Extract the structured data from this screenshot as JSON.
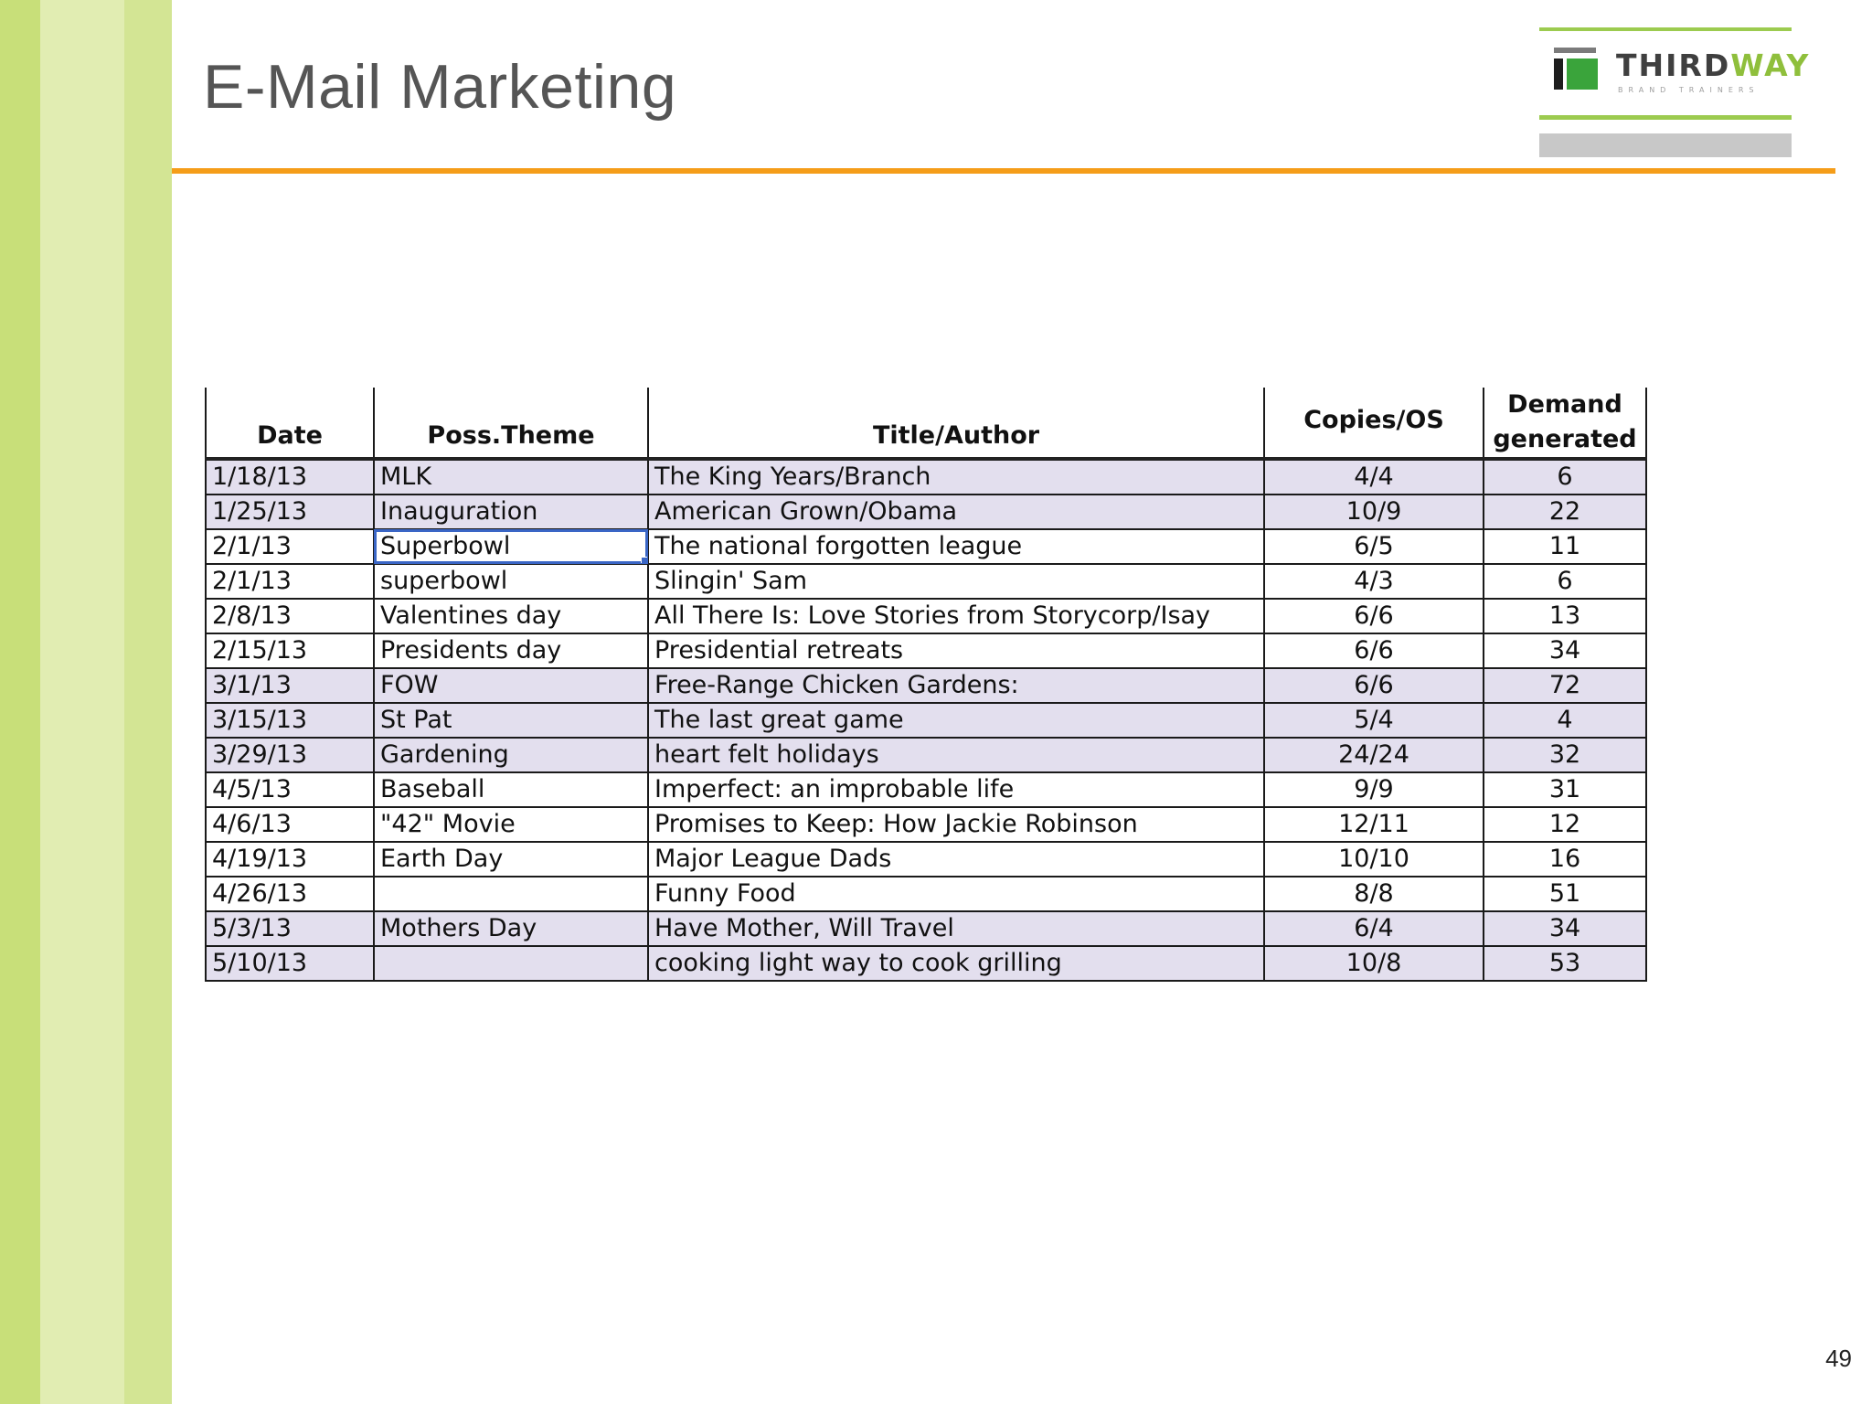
{
  "slide": {
    "title": "E-Mail Marketing",
    "page_number": "49"
  },
  "logo": {
    "brand_part1": "THIRD",
    "brand_part2": "WAY",
    "tagline": "BRAND TRAINERS",
    "colors": {
      "green": "#3aa43b",
      "lime": "#9ccb4f",
      "dark": "#1e1e1e",
      "gray": "#c8c8c8"
    }
  },
  "colors": {
    "accent_rule": "#f59d19",
    "stripe_light": "#e1edb2",
    "stripe_dark": "#c8df79",
    "row_shade": "#e3dfee",
    "selection": "#3a66c6"
  },
  "table": {
    "headers": {
      "date": "Date",
      "theme": "Poss.Theme",
      "title": "Title/Author",
      "copies": "Copies/OS",
      "demand_line1": "Demand",
      "demand_line2": "generated"
    },
    "rows": [
      {
        "date": "1/18/13",
        "theme": "MLK",
        "title": "The King Years/Branch",
        "copies": "4/4",
        "demand": "6",
        "shaded": true
      },
      {
        "date": "1/25/13",
        "theme": "Inauguration",
        "title": "American Grown/Obama",
        "copies": "10/9",
        "demand": "22",
        "shaded": true
      },
      {
        "date": "2/1/13",
        "theme": "Superbowl",
        "title": "The national forgotten league",
        "copies": "6/5",
        "demand": "11",
        "shaded": false
      },
      {
        "date": "2/1/13",
        "theme": "superbowl",
        "title": "Slingin' Sam",
        "copies": "4/3",
        "demand": "6",
        "shaded": false
      },
      {
        "date": "2/8/13",
        "theme": "Valentines day",
        "title": "All There Is: Love Stories from Storycorp/Isay",
        "copies": "6/6",
        "demand": "13",
        "shaded": false
      },
      {
        "date": "2/15/13",
        "theme": "Presidents day",
        "title": "Presidential retreats",
        "copies": "6/6",
        "demand": "34",
        "shaded": false
      },
      {
        "date": "3/1/13",
        "theme": "FOW",
        "title": " Free-Range Chicken Gardens:",
        "copies": "6/6",
        "demand": "72",
        "shaded": true
      },
      {
        "date": "3/15/13",
        "theme": "St Pat",
        "title": "The last great game",
        "copies": "5/4",
        "demand": "4",
        "shaded": true
      },
      {
        "date": "3/29/13",
        "theme": "Gardening",
        "title": "heart felt holidays",
        "copies": "24/24",
        "demand": "32",
        "shaded": true
      },
      {
        "date": "4/5/13",
        "theme": "Baseball",
        "title": "Imperfect: an improbable life",
        "copies": "9/9",
        "demand": "31",
        "shaded": false
      },
      {
        "date": "4/6/13",
        "theme": "\"42\" Movie",
        "title": "Promises to Keep: How Jackie Robinson",
        "copies": "12/11",
        "demand": "12",
        "shaded": false
      },
      {
        "date": "4/19/13",
        "theme": "Earth Day",
        "title": "Major League Dads",
        "copies": "10/10",
        "demand": "16",
        "shaded": false
      },
      {
        "date": "4/26/13",
        "theme": "",
        "title": "Funny Food",
        "copies": "8/8",
        "demand": "51",
        "shaded": false
      },
      {
        "date": "5/3/13",
        "theme": "Mothers Day",
        "title": "Have Mother, Will Travel",
        "copies": "6/4",
        "demand": "34",
        "shaded": true
      },
      {
        "date": "5/10/13",
        "theme": "",
        "title": "cooking light way to cook grilling",
        "copies": "10/8",
        "demand": "53",
        "shaded": true
      }
    ],
    "selected_cell": {
      "row": 2,
      "column": "theme"
    }
  }
}
